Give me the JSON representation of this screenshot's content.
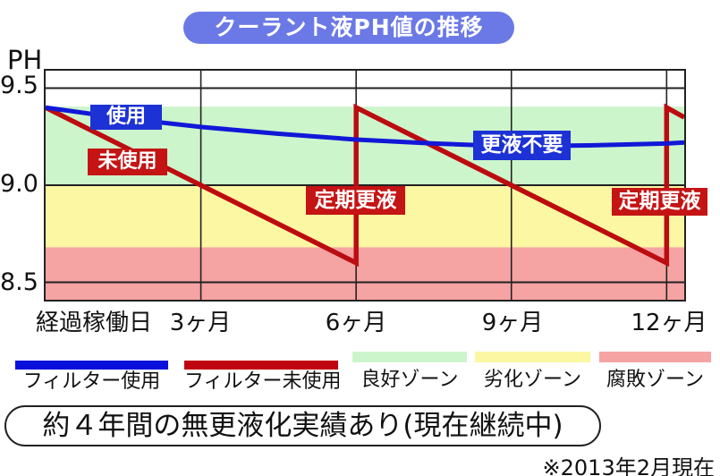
{
  "title": "クーラント液PH値の推移",
  "axis": {
    "y_label": "PH",
    "y_tick_labels": [
      "9.5",
      "9.0",
      "8.5"
    ]
  },
  "chart_data": {
    "type": "line",
    "title": "クーラント液PH値の推移",
    "xlabel": "経過稼働日",
    "ylabel": "PH",
    "x_unit": "month",
    "x_range": [
      0,
      12.34
    ],
    "y_range": [
      8.41,
      9.59
    ],
    "y_gridlines": [
      9.5,
      9.0,
      8.5
    ],
    "x_gridlines_months": [
      3,
      6,
      9,
      12
    ],
    "x_ticks": [
      {
        "label": "経過稼働日",
        "month": 0,
        "align": "left"
      },
      {
        "label": "3ヶ月",
        "month": 3
      },
      {
        "label": "6ヶ月",
        "month": 6
      },
      {
        "label": "9ヶ月",
        "month": 9
      },
      {
        "label": "12ヶ月",
        "month": 12
      }
    ],
    "zones": [
      {
        "name": "良好ゾーン",
        "from": 9.0,
        "to": 9.405,
        "color": "#cdf5cb"
      },
      {
        "name": "劣化ゾーン",
        "from": 8.68,
        "to": 9.0,
        "color": "#fbf7a3"
      },
      {
        "name": "腐敗ゾーン",
        "from": 8.41,
        "to": 8.68,
        "color": "#f6a3a3"
      }
    ],
    "series": [
      {
        "name": "フィルター使用",
        "color": "#1118d8",
        "width": 5,
        "points": [
          [
            0,
            9.4
          ],
          [
            1.5,
            9.345
          ],
          [
            3,
            9.3
          ],
          [
            4.5,
            9.265
          ],
          [
            6,
            9.235
          ],
          [
            7.5,
            9.215
          ],
          [
            9,
            9.2
          ],
          [
            10.5,
            9.205
          ],
          [
            12,
            9.215
          ],
          [
            12.34,
            9.22
          ]
        ]
      },
      {
        "name": "フィルター未使用",
        "color": "#bb0c10",
        "width": 5.5,
        "points": [
          [
            0,
            9.4
          ],
          [
            6,
            8.6
          ],
          [
            6,
            9.4
          ],
          [
            12,
            8.6
          ],
          [
            12,
            9.4
          ],
          [
            12.34,
            9.35
          ]
        ]
      }
    ],
    "annotations": [
      {
        "text": "使用",
        "type": "blue-label"
      },
      {
        "text": "未使用",
        "type": "red-label"
      },
      {
        "text": "定期更液",
        "type": "red-label"
      },
      {
        "text": "更液不要",
        "type": "blue-label"
      },
      {
        "text": "定期更液",
        "type": "red-label"
      }
    ]
  },
  "legend": {
    "items": [
      {
        "label": "フィルター使用",
        "swatch": "line",
        "color": "#0a10dc"
      },
      {
        "label": "フィルター未使用",
        "swatch": "line",
        "color": "#c00410"
      },
      {
        "label": "良好ゾーン",
        "swatch": "zone",
        "color": "#cdf5cb"
      },
      {
        "label": "劣化ゾーン",
        "swatch": "zone",
        "color": "#fbf7a3"
      },
      {
        "label": "腐敗ゾーン",
        "swatch": "zone",
        "color": "#f6a3a3"
      }
    ]
  },
  "note": "約４年間の無更液化実績あり(現在継続中)",
  "footnote": "※2013年2月現在",
  "colors": {
    "title_bg": "#6b79e6",
    "blue_line": "#1118d8",
    "red_line": "#bb0c10",
    "blue_label_bg": "#1c32d4",
    "red_label_bg": "#c41414",
    "good_zone": "#cdf5cb",
    "bad_zone": "#fbf7a3",
    "rot_zone": "#f6a3a3"
  }
}
